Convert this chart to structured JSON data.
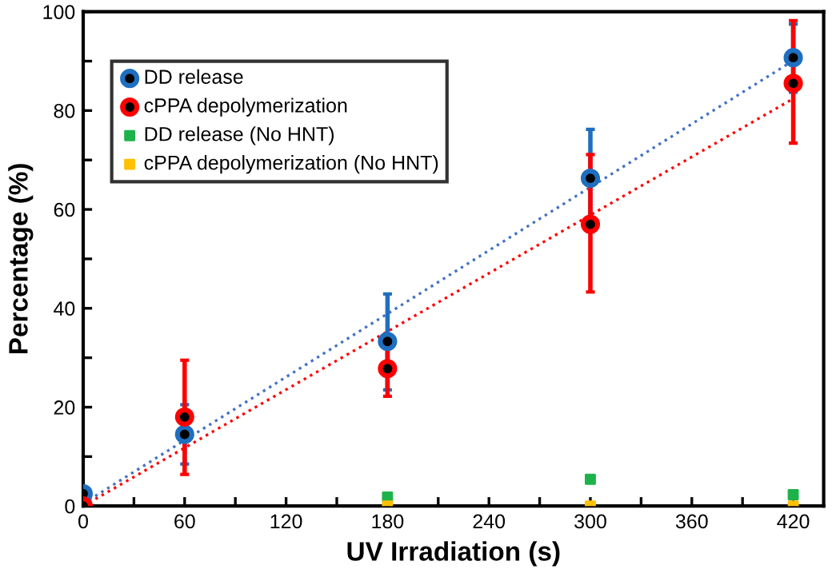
{
  "chart_data": {
    "type": "scatter",
    "xlabel": "UV Irradiation (s)",
    "ylabel": "Percentage (%)",
    "x": [
      0,
      60,
      180,
      300,
      420
    ],
    "series": [
      {
        "name": "DD release",
        "color": "#1f6fc0",
        "marker": "circle",
        "values": [
          2.5,
          14.5,
          33.3,
          66.3,
          90.7
        ],
        "errors": [
          null,
          [
            8.5,
            20.5
          ],
          [
            23.5,
            42.9
          ],
          [
            56.4,
            76.2
          ],
          [
            83.7,
            97.5
          ]
        ]
      },
      {
        "name": "cPPA depolymerization",
        "color": "#ff0000",
        "marker": "circle",
        "values": [
          0,
          18,
          27.8,
          57,
          85.5
        ],
        "errors": [
          null,
          [
            6.4,
            29.5
          ],
          [
            22.2,
            33
          ],
          [
            43.3,
            71.1
          ],
          [
            73.4,
            98.2
          ]
        ]
      },
      {
        "name": "DD release (No HNT)",
        "color": "#1db34a",
        "marker": "square",
        "x": [
          180,
          300,
          420
        ],
        "values": [
          1.8,
          5.4,
          2.3
        ]
      },
      {
        "name": "cPPA depolymerization (No HNT)",
        "color": "#ffc000",
        "marker": "square",
        "x": [
          180,
          300,
          420
        ],
        "values": [
          0,
          0,
          0
        ]
      },
      {
        "type": "line",
        "color": "#4472c4",
        "line_style": "dotted",
        "marker": "none",
        "x": [
          0,
          420
        ],
        "values": [
          0.5,
          90.1
        ]
      },
      {
        "type": "line",
        "color": "#ff0000",
        "line_style": "dotted",
        "marker": "none",
        "x": [
          0,
          420
        ],
        "values": [
          0,
          82.4
        ]
      }
    ],
    "xlim": [
      0,
      438
    ],
    "ylim": [
      0,
      100
    ],
    "xticks": [
      0,
      {
        "value": 30,
        "label": null
      },
      60,
      {
        "value": 90,
        "label": null
      },
      120,
      {
        "value": 150,
        "label": null
      },
      180,
      {
        "value": 210,
        "label": null
      },
      240,
      {
        "value": 270,
        "label": null
      },
      300,
      {
        "value": 330,
        "label": null
      },
      360,
      {
        "value": 390,
        "label": null
      },
      420
    ],
    "yticks": [
      0,
      {
        "value": 10,
        "label": null
      },
      20,
      {
        "value": 30,
        "label": null
      },
      40,
      {
        "value": 50,
        "label": null
      },
      60,
      {
        "value": 70,
        "label": null
      },
      80,
      {
        "value": 90,
        "label": null
      },
      100
    ],
    "legend": "top left",
    "grid": false
  }
}
